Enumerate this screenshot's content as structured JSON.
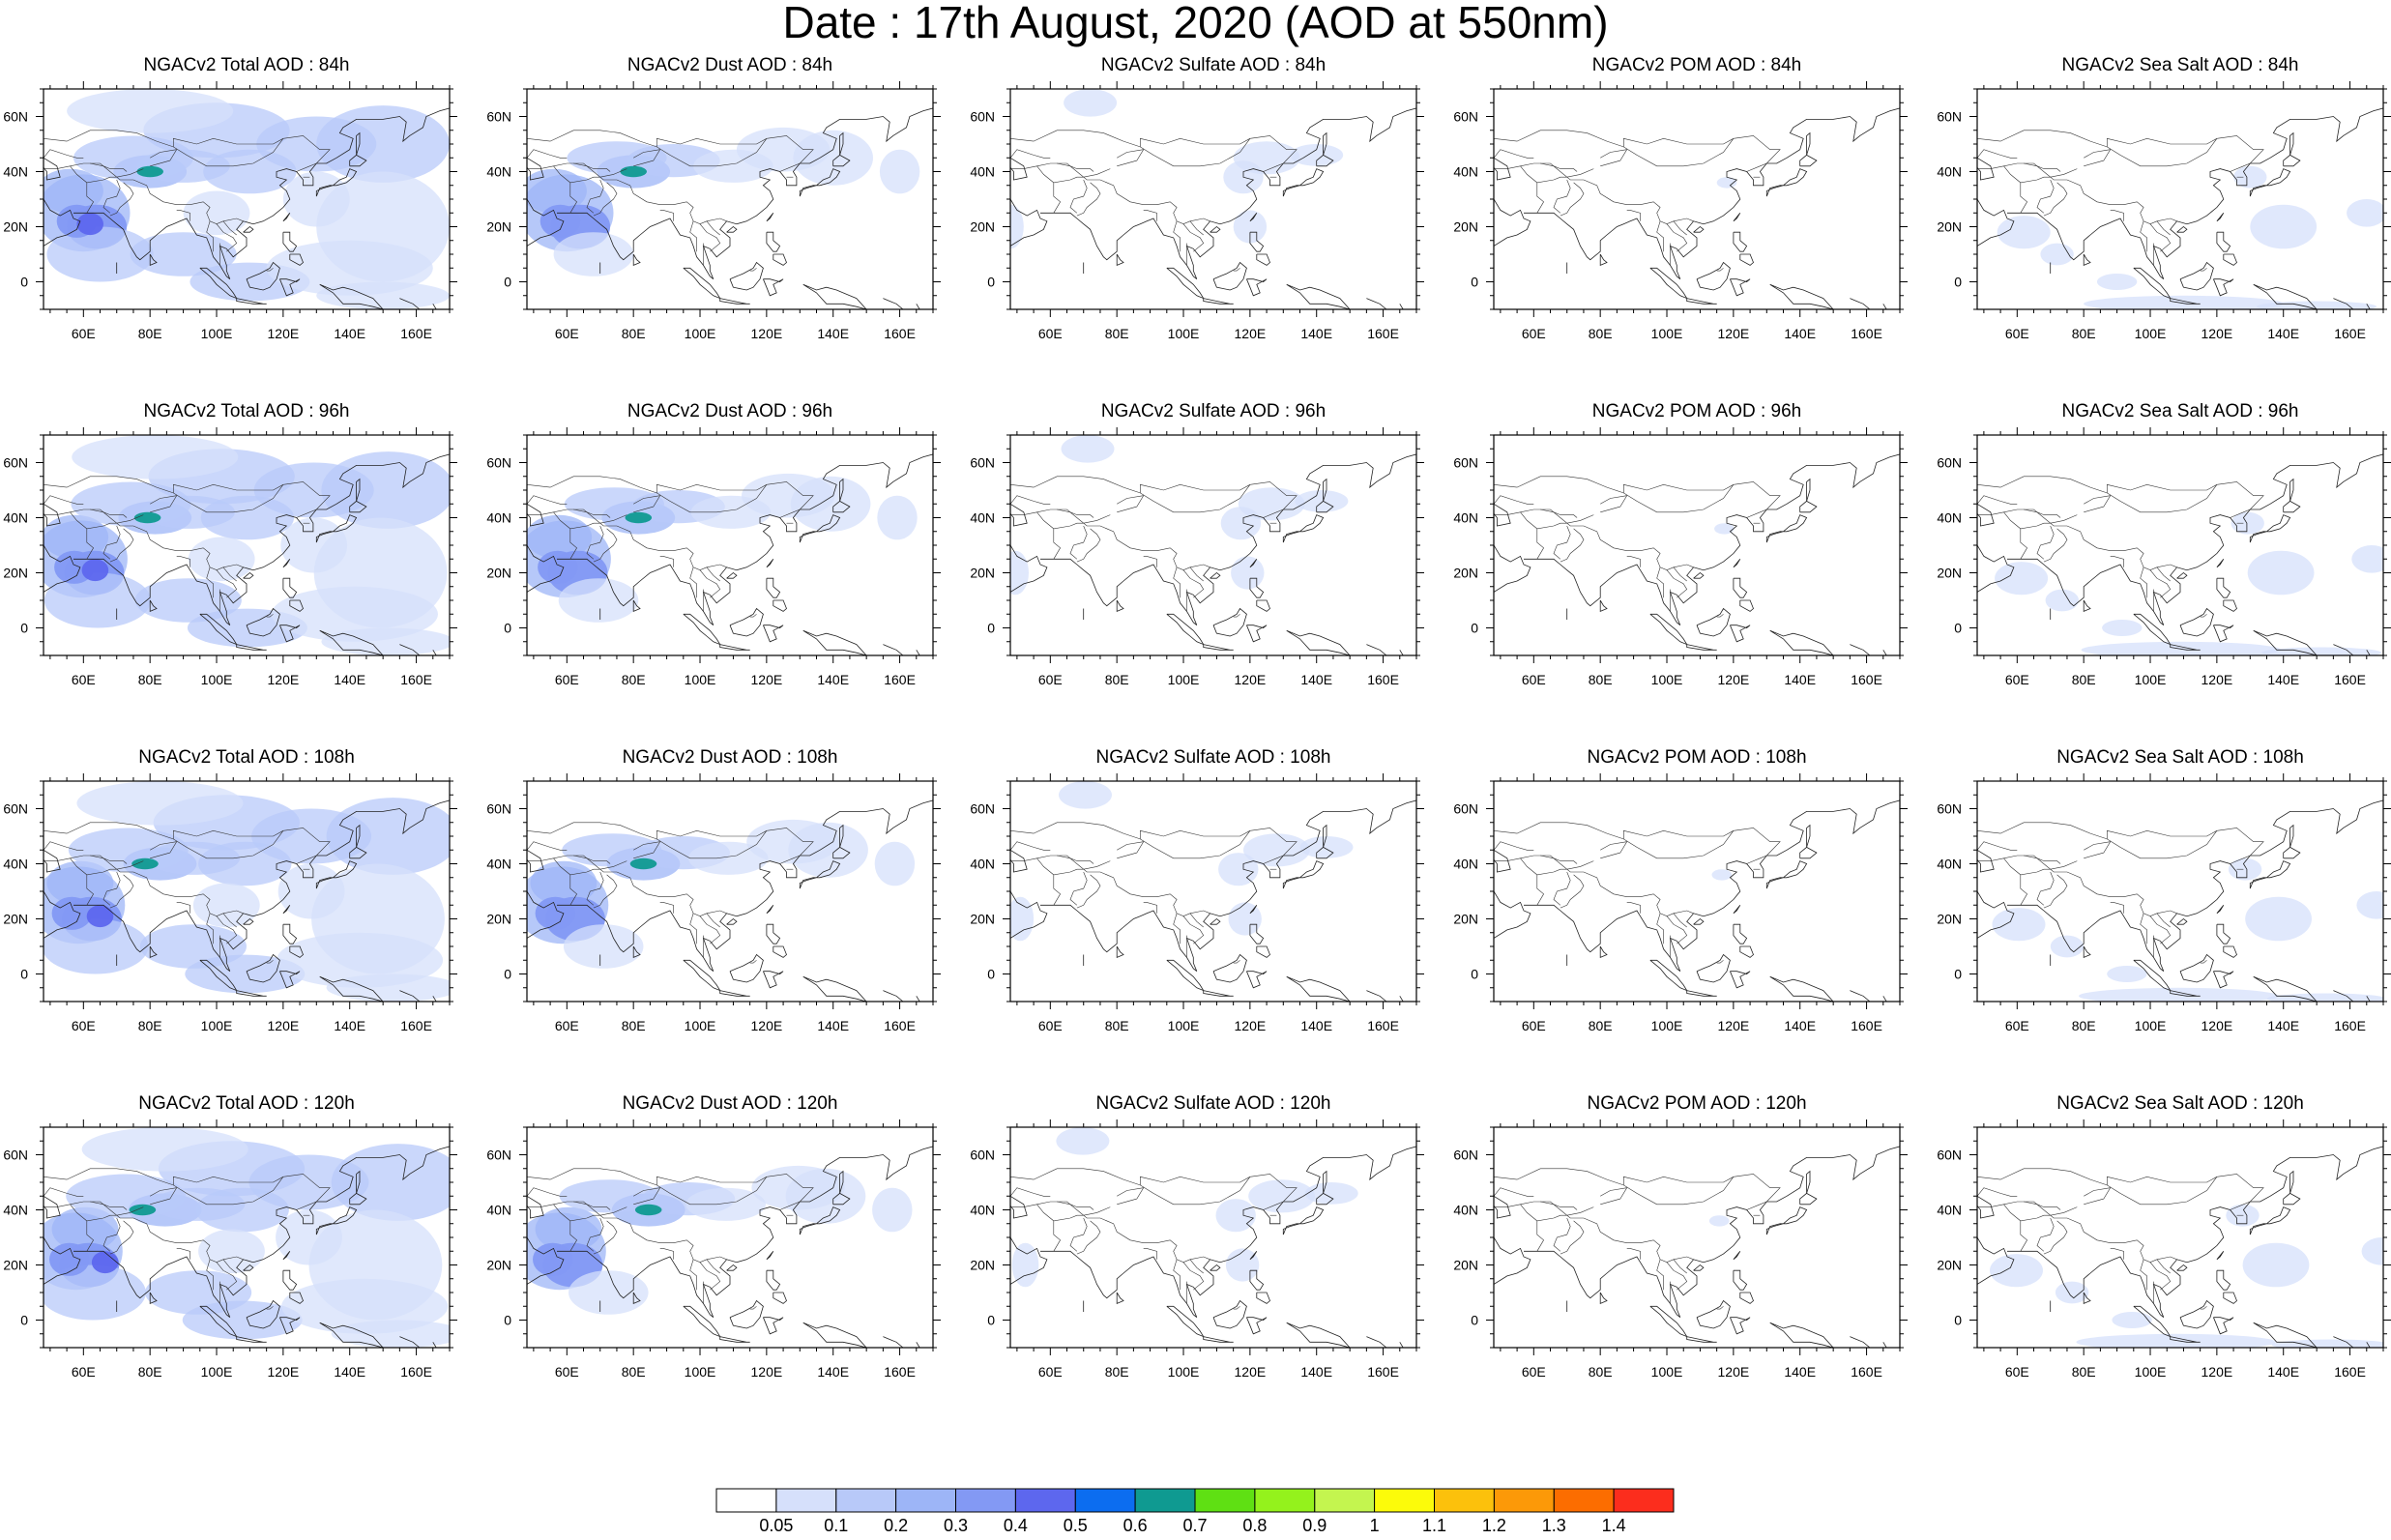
{
  "title": "Date : 17th August, 2020 (AOD at 550nm)",
  "lon_ticks": [
    "60E",
    "80E",
    "100E",
    "120E",
    "140E",
    "160E"
  ],
  "lat_ticks": [
    "60N",
    "40N",
    "20N",
    "0"
  ],
  "panels": [
    [
      "NGACv2 Total AOD : 84h",
      "NGACv2 Dust AOD : 84h",
      "NGACv2 Sulfate AOD : 84h",
      "NGACv2 POM AOD : 84h",
      "NGACv2 Sea Salt AOD : 84h"
    ],
    [
      "NGACv2 Total AOD : 96h",
      "NGACv2 Dust AOD : 96h",
      "NGACv2 Sulfate AOD : 96h",
      "NGACv2 POM AOD : 96h",
      "NGACv2 Sea Salt AOD : 96h"
    ],
    [
      "NGACv2 Total AOD : 108h",
      "NGACv2 Dust AOD : 108h",
      "NGACv2 Sulfate AOD : 108h",
      "NGACv2 POM AOD : 108h",
      "NGACv2 Sea Salt AOD : 108h"
    ],
    [
      "NGACv2 Total AOD : 120h",
      "NGACv2 Dust AOD : 120h",
      "NGACv2 Sulfate AOD : 120h",
      "NGACv2 POM AOD : 120h",
      "NGACv2 Sea Salt  AOD : 120h"
    ]
  ],
  "colorbar": {
    "labels": [
      "0.05",
      "0.1",
      "0.2",
      "0.3",
      "0.4",
      "0.5",
      "0.6",
      "0.7",
      "0.8",
      "0.9",
      "1",
      "1.1",
      "1.2",
      "1.3",
      "1.4"
    ],
    "colors": [
      "#ffffff",
      "#d6e0fb",
      "#b8c9f9",
      "#9db5f7",
      "#8399f4",
      "#5d67ee",
      "#0c6df0",
      "#0f9a91",
      "#5fe013",
      "#94f21c",
      "#c4f54f",
      "#fcfb0a",
      "#fcc10c",
      "#fc9908",
      "#fc6d00",
      "#fc2d1d"
    ]
  }
}
